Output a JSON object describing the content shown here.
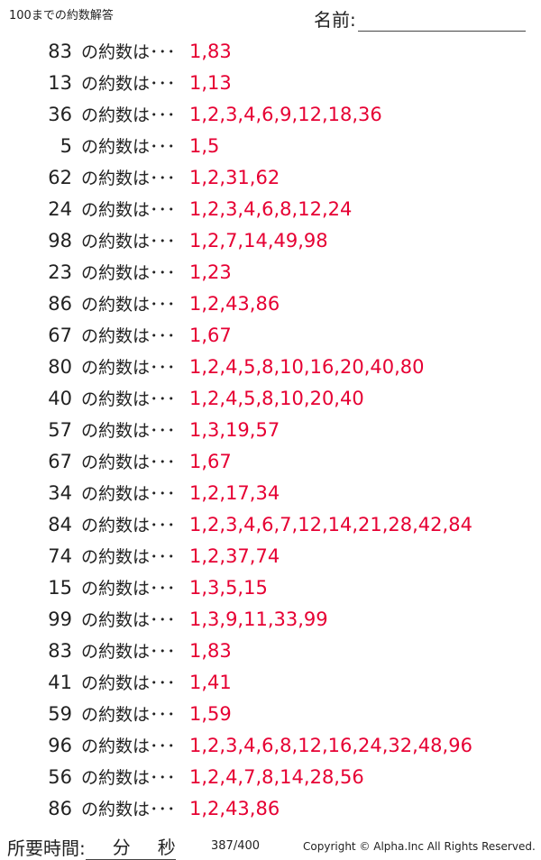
{
  "header": {
    "title": "100までの約数解答",
    "name_label": "名前:"
  },
  "label": "の約数は･･･",
  "rows": [
    {
      "n": "83",
      "a": "1,83"
    },
    {
      "n": "13",
      "a": "1,13"
    },
    {
      "n": "36",
      "a": "1,2,3,4,6,9,12,18,36"
    },
    {
      "n": "5",
      "a": "1,5"
    },
    {
      "n": "62",
      "a": "1,2,31,62"
    },
    {
      "n": "24",
      "a": "1,2,3,4,6,8,12,24"
    },
    {
      "n": "98",
      "a": "1,2,7,14,49,98"
    },
    {
      "n": "23",
      "a": "1,23"
    },
    {
      "n": "86",
      "a": "1,2,43,86"
    },
    {
      "n": "67",
      "a": "1,67"
    },
    {
      "n": "80",
      "a": "1,2,4,5,8,10,16,20,40,80"
    },
    {
      "n": "40",
      "a": "1,2,4,5,8,10,20,40"
    },
    {
      "n": "57",
      "a": "1,3,19,57"
    },
    {
      "n": "67",
      "a": "1,67"
    },
    {
      "n": "34",
      "a": "1,2,17,34"
    },
    {
      "n": "84",
      "a": "1,2,3,4,6,7,12,14,21,28,42,84"
    },
    {
      "n": "74",
      "a": "1,2,37,74"
    },
    {
      "n": "15",
      "a": "1,3,5,15"
    },
    {
      "n": "99",
      "a": "1,3,9,11,33,99"
    },
    {
      "n": "83",
      "a": "1,83"
    },
    {
      "n": "41",
      "a": "1,41"
    },
    {
      "n": "59",
      "a": "1,59"
    },
    {
      "n": "96",
      "a": "1,2,3,4,6,8,12,16,24,32,48,96"
    },
    {
      "n": "56",
      "a": "1,2,4,7,8,14,28,56"
    },
    {
      "n": "86",
      "a": "1,2,43,86"
    }
  ],
  "footer": {
    "time_label": "所要時間:",
    "minutes": "分",
    "seconds": "秒",
    "page": "387/400",
    "copyright": "Copyright ©  Alpha.Inc All Rights Reserved."
  },
  "colors": {
    "answer": "#e60033"
  }
}
